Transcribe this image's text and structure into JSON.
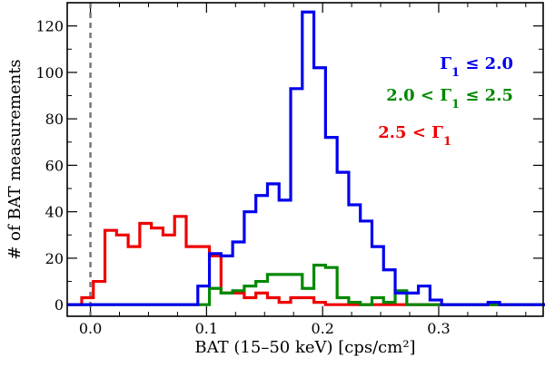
{
  "chart_data": {
    "type": "step-histogram",
    "xlabel": "BAT (15–50 keV) [cps/cm²]",
    "ylabel": "# of BAT measurements",
    "xlim": [
      -0.02,
      0.39
    ],
    "ylim": [
      -5,
      130
    ],
    "x_ticks": [
      0.0,
      0.1,
      0.2,
      0.3
    ],
    "x_tick_labels": [
      "0.0",
      "0.1",
      "0.2",
      "0.3"
    ],
    "x_minor_ticks": [
      0.025,
      0.05,
      0.075,
      0.125,
      0.15,
      0.175,
      0.225,
      0.25,
      0.275,
      0.325,
      0.35,
      0.375
    ],
    "y_ticks": [
      0,
      20,
      40,
      60,
      80,
      100,
      120
    ],
    "y_tick_labels": [
      "0",
      "20",
      "40",
      "60",
      "80",
      "100",
      "120"
    ],
    "y_minor_ticks": [
      10,
      30,
      50,
      70,
      90,
      110
    ],
    "bin_edges": [
      -0.0175,
      -0.0075,
      0.0025,
      0.0125,
      0.0225,
      0.0325,
      0.0425,
      0.0525,
      0.0625,
      0.0725,
      0.0825,
      0.0925,
      0.1025,
      0.1125,
      0.1225,
      0.1325,
      0.1425,
      0.1525,
      0.1625,
      0.1725,
      0.1825,
      0.1925,
      0.2025,
      0.2125,
      0.2225,
      0.2325,
      0.2425,
      0.2525,
      0.2625,
      0.2725,
      0.2825,
      0.2925,
      0.3025,
      0.3125,
      0.3225,
      0.3325,
      0.3425,
      0.3525,
      0.3625,
      0.3725,
      0.3825,
      0.3925
    ],
    "reference_line": {
      "x": 0.0,
      "style": "dashed",
      "color": "#777777"
    },
    "series": [
      {
        "name": "Γ₁ ≤ 2.0",
        "color": "#0000ee",
        "counts": [
          0,
          0,
          0,
          0,
          0,
          0,
          0,
          0,
          0,
          0,
          0,
          8,
          22,
          21,
          27,
          40,
          47,
          52,
          45,
          93,
          126,
          102,
          72,
          57,
          43,
          36,
          25,
          15,
          5,
          5,
          8,
          2,
          0,
          0,
          0,
          0,
          1,
          0,
          0,
          0,
          0
        ]
      },
      {
        "name": "2.0 < Γ₁ ≤ 2.5",
        "color": "#008800",
        "counts": [
          0,
          0,
          0,
          0,
          0,
          0,
          0,
          0,
          0,
          0,
          0,
          0,
          7,
          5,
          6,
          8,
          10,
          13,
          13,
          13,
          7,
          17,
          16,
          3,
          1,
          0,
          3,
          1,
          6,
          0,
          0,
          0,
          0,
          0,
          0,
          0,
          0,
          0,
          0,
          0,
          0
        ]
      },
      {
        "name": "2.5 < Γ₁",
        "color": "#ee0000",
        "counts": [
          0,
          3,
          10,
          32,
          30,
          25,
          35,
          33,
          30,
          38,
          25,
          25,
          21,
          5,
          5,
          3,
          5,
          3,
          1,
          3,
          3,
          1,
          0,
          0,
          0,
          0,
          0,
          0,
          0,
          0,
          0,
          0,
          0,
          0,
          0,
          0,
          0,
          0,
          0,
          0,
          0
        ]
      }
    ],
    "legend": {
      "placement": "top-right",
      "entries": [
        {
          "prefix": "Γ",
          "sub": "1",
          "suffix": " ≤ 2.0",
          "color": "#0000ee"
        },
        {
          "prefix": "2.0 < Γ",
          "sub": "1",
          "suffix": " ≤ 2.5",
          "color": "#008800"
        },
        {
          "prefix": "2.5 < Γ",
          "sub": "1",
          "suffix": "",
          "color": "#ee0000"
        }
      ]
    }
  }
}
